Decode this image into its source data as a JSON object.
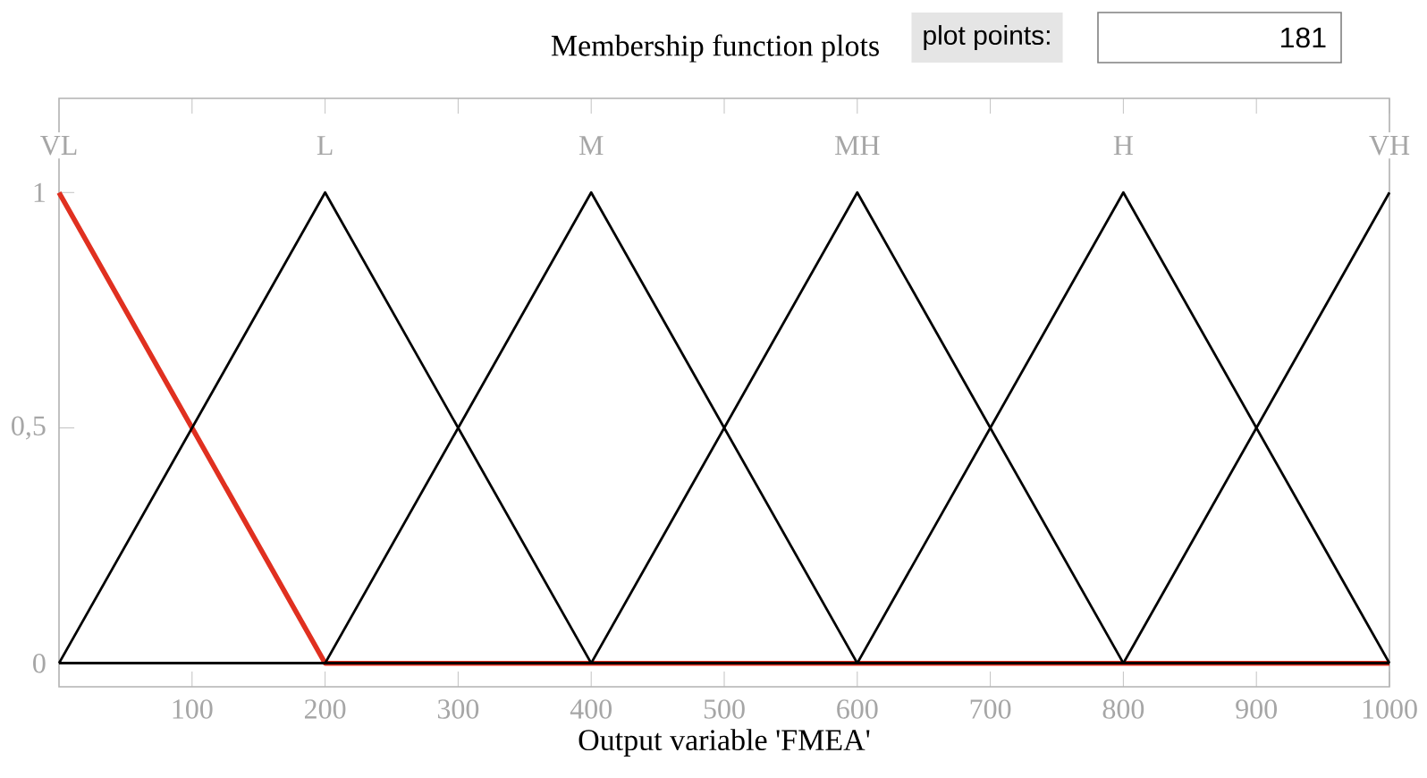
{
  "chart_data": {
    "type": "line",
    "title": "Membership function plots",
    "xlabel": "Output variable 'FMEA'",
    "annotations": [
      "plot points:",
      "181"
    ],
    "xlim": [
      0,
      1000
    ],
    "ylim": [
      -0.05,
      1.2
    ],
    "xticks": [
      100,
      200,
      300,
      400,
      500,
      600,
      700,
      800,
      900,
      1000
    ],
    "yticks": [
      0,
      {
        "value": 0.5,
        "label": "0,5"
      },
      1
    ],
    "grid": false,
    "legend": false,
    "marker": "none",
    "line_style": "solid",
    "series": [
      {
        "name": "VL",
        "color": "#e03020",
        "x": [
          0,
          200,
          1000
        ],
        "values": [
          1,
          0,
          0
        ]
      },
      {
        "name": "L",
        "color": "#000000",
        "x": [
          0,
          200,
          400,
          1000
        ],
        "values": [
          0,
          1,
          0,
          0
        ]
      },
      {
        "name": "M",
        "color": "#000000",
        "x": [
          0,
          200,
          400,
          600,
          1000
        ],
        "values": [
          0,
          0,
          1,
          0,
          0
        ]
      },
      {
        "name": "MH",
        "color": "#000000",
        "x": [
          0,
          400,
          600,
          800,
          1000
        ],
        "values": [
          0,
          0,
          1,
          0,
          0
        ]
      },
      {
        "name": "H",
        "color": "#000000",
        "x": [
          0,
          600,
          800,
          1000
        ],
        "values": [
          0,
          0,
          1,
          0
        ]
      },
      {
        "name": "VH",
        "color": "#000000",
        "x": [
          0,
          800,
          1000
        ],
        "values": [
          0,
          0,
          1
        ]
      }
    ]
  }
}
